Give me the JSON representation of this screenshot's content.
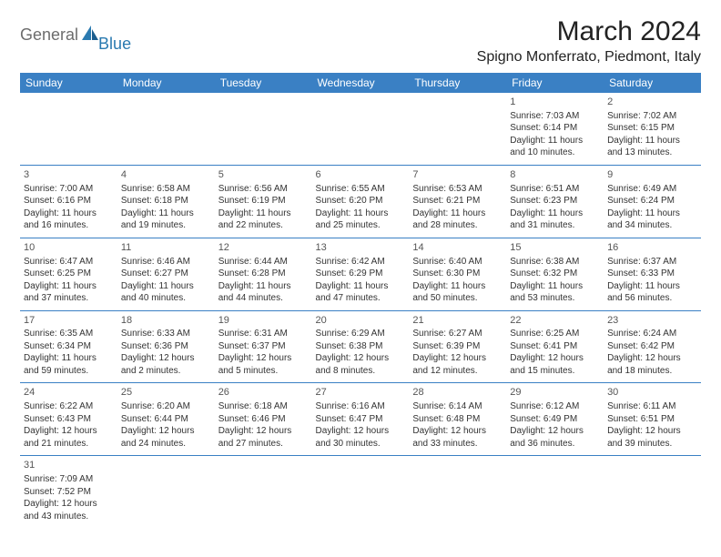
{
  "logo": {
    "general": "General",
    "blue": "Blue"
  },
  "title": "March 2024",
  "location": "Spigno Monferrato, Piedmont, Italy",
  "colors": {
    "header_bg": "#3a80c4",
    "header_text": "#ffffff",
    "border": "#3a80c4",
    "logo_gray": "#6c6c6c",
    "logo_blue": "#2a7ab0"
  },
  "day_headers": [
    "Sunday",
    "Monday",
    "Tuesday",
    "Wednesday",
    "Thursday",
    "Friday",
    "Saturday"
  ],
  "weeks": [
    [
      null,
      null,
      null,
      null,
      null,
      {
        "n": "1",
        "sr": "Sunrise: 7:03 AM",
        "ss": "Sunset: 6:14 PM",
        "dl": "Daylight: 11 hours and 10 minutes."
      },
      {
        "n": "2",
        "sr": "Sunrise: 7:02 AM",
        "ss": "Sunset: 6:15 PM",
        "dl": "Daylight: 11 hours and 13 minutes."
      }
    ],
    [
      {
        "n": "3",
        "sr": "Sunrise: 7:00 AM",
        "ss": "Sunset: 6:16 PM",
        "dl": "Daylight: 11 hours and 16 minutes."
      },
      {
        "n": "4",
        "sr": "Sunrise: 6:58 AM",
        "ss": "Sunset: 6:18 PM",
        "dl": "Daylight: 11 hours and 19 minutes."
      },
      {
        "n": "5",
        "sr": "Sunrise: 6:56 AM",
        "ss": "Sunset: 6:19 PM",
        "dl": "Daylight: 11 hours and 22 minutes."
      },
      {
        "n": "6",
        "sr": "Sunrise: 6:55 AM",
        "ss": "Sunset: 6:20 PM",
        "dl": "Daylight: 11 hours and 25 minutes."
      },
      {
        "n": "7",
        "sr": "Sunrise: 6:53 AM",
        "ss": "Sunset: 6:21 PM",
        "dl": "Daylight: 11 hours and 28 minutes."
      },
      {
        "n": "8",
        "sr": "Sunrise: 6:51 AM",
        "ss": "Sunset: 6:23 PM",
        "dl": "Daylight: 11 hours and 31 minutes."
      },
      {
        "n": "9",
        "sr": "Sunrise: 6:49 AM",
        "ss": "Sunset: 6:24 PM",
        "dl": "Daylight: 11 hours and 34 minutes."
      }
    ],
    [
      {
        "n": "10",
        "sr": "Sunrise: 6:47 AM",
        "ss": "Sunset: 6:25 PM",
        "dl": "Daylight: 11 hours and 37 minutes."
      },
      {
        "n": "11",
        "sr": "Sunrise: 6:46 AM",
        "ss": "Sunset: 6:27 PM",
        "dl": "Daylight: 11 hours and 40 minutes."
      },
      {
        "n": "12",
        "sr": "Sunrise: 6:44 AM",
        "ss": "Sunset: 6:28 PM",
        "dl": "Daylight: 11 hours and 44 minutes."
      },
      {
        "n": "13",
        "sr": "Sunrise: 6:42 AM",
        "ss": "Sunset: 6:29 PM",
        "dl": "Daylight: 11 hours and 47 minutes."
      },
      {
        "n": "14",
        "sr": "Sunrise: 6:40 AM",
        "ss": "Sunset: 6:30 PM",
        "dl": "Daylight: 11 hours and 50 minutes."
      },
      {
        "n": "15",
        "sr": "Sunrise: 6:38 AM",
        "ss": "Sunset: 6:32 PM",
        "dl": "Daylight: 11 hours and 53 minutes."
      },
      {
        "n": "16",
        "sr": "Sunrise: 6:37 AM",
        "ss": "Sunset: 6:33 PM",
        "dl": "Daylight: 11 hours and 56 minutes."
      }
    ],
    [
      {
        "n": "17",
        "sr": "Sunrise: 6:35 AM",
        "ss": "Sunset: 6:34 PM",
        "dl": "Daylight: 11 hours and 59 minutes."
      },
      {
        "n": "18",
        "sr": "Sunrise: 6:33 AM",
        "ss": "Sunset: 6:36 PM",
        "dl": "Daylight: 12 hours and 2 minutes."
      },
      {
        "n": "19",
        "sr": "Sunrise: 6:31 AM",
        "ss": "Sunset: 6:37 PM",
        "dl": "Daylight: 12 hours and 5 minutes."
      },
      {
        "n": "20",
        "sr": "Sunrise: 6:29 AM",
        "ss": "Sunset: 6:38 PM",
        "dl": "Daylight: 12 hours and 8 minutes."
      },
      {
        "n": "21",
        "sr": "Sunrise: 6:27 AM",
        "ss": "Sunset: 6:39 PM",
        "dl": "Daylight: 12 hours and 12 minutes."
      },
      {
        "n": "22",
        "sr": "Sunrise: 6:25 AM",
        "ss": "Sunset: 6:41 PM",
        "dl": "Daylight: 12 hours and 15 minutes."
      },
      {
        "n": "23",
        "sr": "Sunrise: 6:24 AM",
        "ss": "Sunset: 6:42 PM",
        "dl": "Daylight: 12 hours and 18 minutes."
      }
    ],
    [
      {
        "n": "24",
        "sr": "Sunrise: 6:22 AM",
        "ss": "Sunset: 6:43 PM",
        "dl": "Daylight: 12 hours and 21 minutes."
      },
      {
        "n": "25",
        "sr": "Sunrise: 6:20 AM",
        "ss": "Sunset: 6:44 PM",
        "dl": "Daylight: 12 hours and 24 minutes."
      },
      {
        "n": "26",
        "sr": "Sunrise: 6:18 AM",
        "ss": "Sunset: 6:46 PM",
        "dl": "Daylight: 12 hours and 27 minutes."
      },
      {
        "n": "27",
        "sr": "Sunrise: 6:16 AM",
        "ss": "Sunset: 6:47 PM",
        "dl": "Daylight: 12 hours and 30 minutes."
      },
      {
        "n": "28",
        "sr": "Sunrise: 6:14 AM",
        "ss": "Sunset: 6:48 PM",
        "dl": "Daylight: 12 hours and 33 minutes."
      },
      {
        "n": "29",
        "sr": "Sunrise: 6:12 AM",
        "ss": "Sunset: 6:49 PM",
        "dl": "Daylight: 12 hours and 36 minutes."
      },
      {
        "n": "30",
        "sr": "Sunrise: 6:11 AM",
        "ss": "Sunset: 6:51 PM",
        "dl": "Daylight: 12 hours and 39 minutes."
      }
    ],
    [
      {
        "n": "31",
        "sr": "Sunrise: 7:09 AM",
        "ss": "Sunset: 7:52 PM",
        "dl": "Daylight: 12 hours and 43 minutes."
      },
      null,
      null,
      null,
      null,
      null,
      null
    ]
  ]
}
